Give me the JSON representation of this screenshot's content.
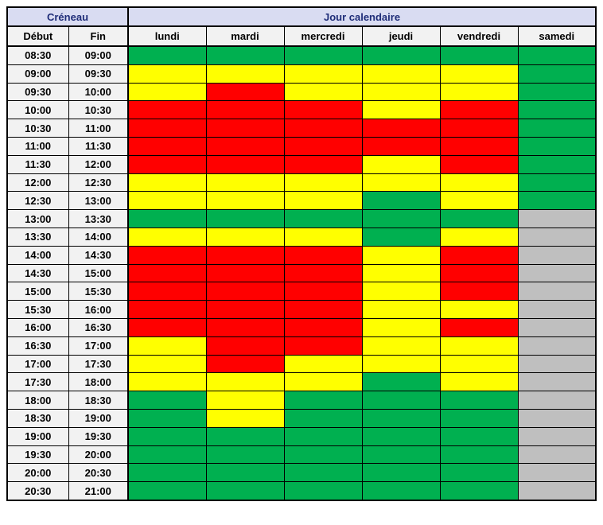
{
  "chart_data": {
    "type": "heatmap",
    "group_headers": [
      "Créneau",
      "Jour calendaire"
    ],
    "columns": [
      "Début",
      "Fin",
      "lundi",
      "mardi",
      "mercredi",
      "jeudi",
      "vendredi",
      "samedi"
    ],
    "status_colors": {
      "green": "#00B050",
      "yellow": "#FFFF00",
      "red": "#FF0000",
      "gray": "#BFBFBF"
    },
    "theme_colors": {
      "group_header_bg": "#D9DCF2",
      "group_header_text": "#1F2D78",
      "subheader_bg": "#F2F2F2",
      "time_cell_bg": "#F2F2F2",
      "grid_line": "#000000"
    },
    "rows": [
      {
        "start": "08:30",
        "end": "09:00",
        "cells": [
          "green",
          "green",
          "green",
          "green",
          "green",
          "green"
        ]
      },
      {
        "start": "09:00",
        "end": "09:30",
        "cells": [
          "yellow",
          "yellow",
          "yellow",
          "yellow",
          "yellow",
          "green"
        ]
      },
      {
        "start": "09:30",
        "end": "10:00",
        "cells": [
          "yellow",
          "red",
          "yellow",
          "yellow",
          "yellow",
          "green"
        ]
      },
      {
        "start": "10:00",
        "end": "10:30",
        "cells": [
          "red",
          "red",
          "red",
          "yellow",
          "red",
          "green"
        ]
      },
      {
        "start": "10:30",
        "end": "11:00",
        "cells": [
          "red",
          "red",
          "red",
          "red",
          "red",
          "green"
        ]
      },
      {
        "start": "11:00",
        "end": "11:30",
        "cells": [
          "red",
          "red",
          "red",
          "red",
          "red",
          "green"
        ]
      },
      {
        "start": "11:30",
        "end": "12:00",
        "cells": [
          "red",
          "red",
          "red",
          "yellow",
          "red",
          "green"
        ]
      },
      {
        "start": "12:00",
        "end": "12:30",
        "cells": [
          "yellow",
          "yellow",
          "yellow",
          "yellow",
          "yellow",
          "green"
        ]
      },
      {
        "start": "12:30",
        "end": "13:00",
        "cells": [
          "yellow",
          "yellow",
          "yellow",
          "green",
          "yellow",
          "green"
        ]
      },
      {
        "start": "13:00",
        "end": "13:30",
        "cells": [
          "green",
          "green",
          "green",
          "green",
          "green",
          "gray"
        ]
      },
      {
        "start": "13:30",
        "end": "14:00",
        "cells": [
          "yellow",
          "yellow",
          "yellow",
          "green",
          "yellow",
          "gray"
        ]
      },
      {
        "start": "14:00",
        "end": "14:30",
        "cells": [
          "red",
          "red",
          "red",
          "yellow",
          "red",
          "gray"
        ]
      },
      {
        "start": "14:30",
        "end": "15:00",
        "cells": [
          "red",
          "red",
          "red",
          "yellow",
          "red",
          "gray"
        ]
      },
      {
        "start": "15:00",
        "end": "15:30",
        "cells": [
          "red",
          "red",
          "red",
          "yellow",
          "red",
          "gray"
        ]
      },
      {
        "start": "15:30",
        "end": "16:00",
        "cells": [
          "red",
          "red",
          "red",
          "yellow",
          "yellow",
          "gray"
        ]
      },
      {
        "start": "16:00",
        "end": "16:30",
        "cells": [
          "red",
          "red",
          "red",
          "yellow",
          "red",
          "gray"
        ]
      },
      {
        "start": "16:30",
        "end": "17:00",
        "cells": [
          "yellow",
          "red",
          "red",
          "yellow",
          "yellow",
          "gray"
        ]
      },
      {
        "start": "17:00",
        "end": "17:30",
        "cells": [
          "yellow",
          "red",
          "yellow",
          "yellow",
          "yellow",
          "gray"
        ]
      },
      {
        "start": "17:30",
        "end": "18:00",
        "cells": [
          "yellow",
          "yellow",
          "yellow",
          "green",
          "yellow",
          "gray"
        ]
      },
      {
        "start": "18:00",
        "end": "18:30",
        "cells": [
          "green",
          "yellow",
          "green",
          "green",
          "green",
          "gray"
        ]
      },
      {
        "start": "18:30",
        "end": "19:00",
        "cells": [
          "green",
          "yellow",
          "green",
          "green",
          "green",
          "gray"
        ]
      },
      {
        "start": "19:00",
        "end": "19:30",
        "cells": [
          "green",
          "green",
          "green",
          "green",
          "green",
          "gray"
        ]
      },
      {
        "start": "19:30",
        "end": "20:00",
        "cells": [
          "green",
          "green",
          "green",
          "green",
          "green",
          "gray"
        ]
      },
      {
        "start": "20:00",
        "end": "20:30",
        "cells": [
          "green",
          "green",
          "green",
          "green",
          "green",
          "gray"
        ]
      },
      {
        "start": "20:30",
        "end": "21:00",
        "cells": [
          "green",
          "green",
          "green",
          "green",
          "green",
          "gray"
        ]
      }
    ]
  }
}
